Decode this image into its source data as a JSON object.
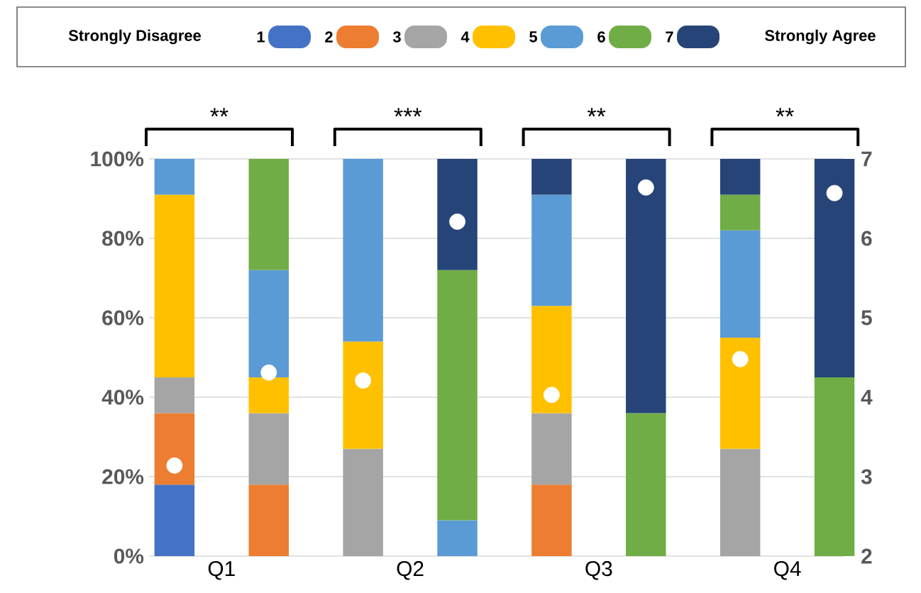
{
  "chart_data": {
    "type": "bar",
    "stacked": true,
    "legend": "top",
    "grid": "y",
    "legend_title": "Strongly Disagree",
    "annotations": [
      "Strongly Agree",
      "**",
      "***",
      "**",
      "**"
    ],
    "categories": [
      null,
      "Q1",
      null,
      null,
      null,
      "Q2",
      null,
      null,
      null,
      "Q3",
      null,
      null,
      null,
      "Q4",
      null
    ],
    "ylim": [
      0,
      100
    ],
    "yticks": [
      {
        "value": 0,
        "label": "0%"
      },
      {
        "value": 20,
        "label": "20%"
      },
      {
        "value": 40,
        "label": "40%"
      },
      {
        "value": 60,
        "label": "60%"
      },
      {
        "value": 80,
        "label": "80%"
      },
      {
        "value": 100,
        "label": "100%"
      }
    ],
    "y2lim": [
      2,
      7
    ],
    "y2ticks": [
      2,
      3,
      4,
      5,
      6,
      7
    ],
    "series": [
      {
        "name": "1",
        "color": "#4472c4",
        "values": [
          18,
          null,
          null,
          null,
          null,
          null,
          null,
          null,
          null,
          null,
          null,
          null,
          null,
          null,
          null
        ]
      },
      {
        "name": "2",
        "color": "#ed7d31",
        "values": [
          18,
          null,
          18,
          null,
          null,
          null,
          null,
          null,
          18,
          null,
          null,
          null,
          null,
          null,
          null
        ]
      },
      {
        "name": "3",
        "color": "#a5a5a5",
        "values": [
          9,
          null,
          18,
          null,
          27,
          null,
          null,
          null,
          18,
          null,
          null,
          null,
          27,
          null,
          null
        ]
      },
      {
        "name": "4",
        "color": "#ffc000",
        "values": [
          46,
          null,
          9,
          null,
          27,
          null,
          null,
          null,
          27,
          null,
          null,
          null,
          28,
          null,
          null
        ]
      },
      {
        "name": "5",
        "color": "#5b9bd5",
        "values": [
          9,
          null,
          27,
          null,
          46,
          null,
          9,
          null,
          28,
          null,
          null,
          null,
          27,
          null,
          null
        ]
      },
      {
        "name": "6",
        "color": "#70ad47",
        "values": [
          null,
          null,
          28,
          null,
          null,
          null,
          63,
          null,
          null,
          null,
          36,
          null,
          9,
          null,
          45
        ]
      },
      {
        "name": "7",
        "color": "#264478",
        "values": [
          null,
          null,
          null,
          null,
          null,
          null,
          28,
          null,
          9,
          null,
          64,
          null,
          9,
          null,
          55
        ]
      },
      {
        "type": "scatter",
        "axis": "y2",
        "marker": "circle",
        "color": "#ffffff",
        "values": [
          3.14,
          null,
          4.31,
          null,
          4.21,
          null,
          6.21,
          null,
          4.03,
          null,
          6.64,
          null,
          4.48,
          null,
          6.57
        ]
      }
    ]
  }
}
